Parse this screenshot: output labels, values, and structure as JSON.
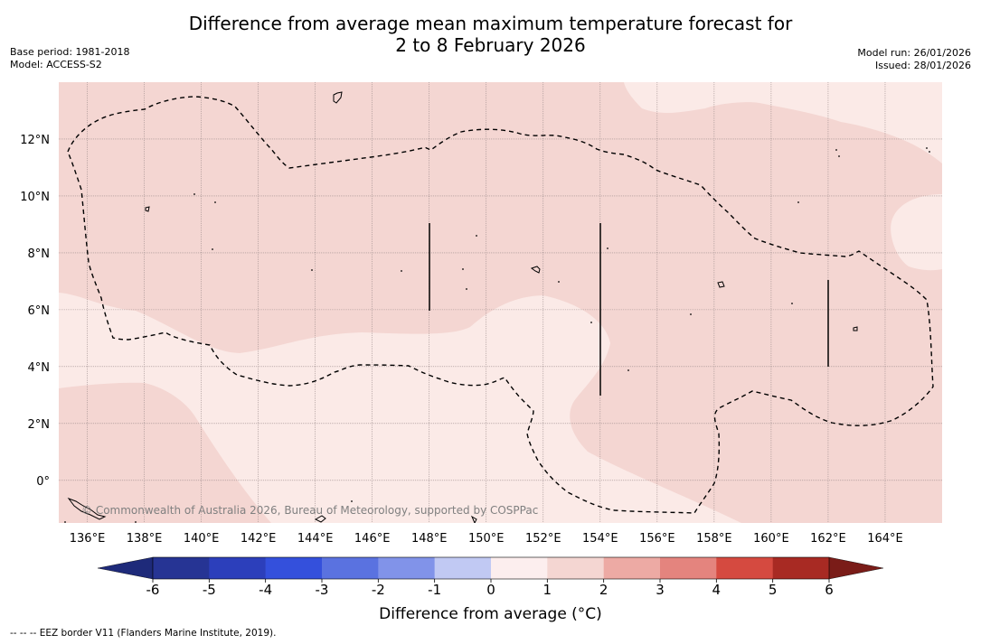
{
  "title": {
    "line1": "Difference from average mean maximum temperature forecast for",
    "line2": "2 to 8 February 2026"
  },
  "meta_left": {
    "base_period": "Base period: 1981-2018",
    "model": "Model: ACCESS-S2"
  },
  "meta_right": {
    "model_run": "Model run: 26/01/2026",
    "issued": "Issued: 28/01/2026"
  },
  "attribution": "© Commonwealth of Australia 2026, Bureau of Meteorology, supported by COSPPac",
  "map": {
    "lon_range": [
      135,
      166
    ],
    "lat_range": [
      -1.5,
      14
    ],
    "lon_ticks": [
      136,
      138,
      140,
      142,
      144,
      146,
      148,
      150,
      152,
      154,
      156,
      158,
      160,
      162,
      164
    ],
    "lon_tick_labels": [
      "136°E",
      "138°E",
      "140°E",
      "142°E",
      "144°E",
      "146°E",
      "148°E",
      "150°E",
      "152°E",
      "154°E",
      "156°E",
      "158°E",
      "160°E",
      "162°E",
      "164°E"
    ],
    "lat_ticks": [
      0,
      2,
      4,
      6,
      8,
      10,
      12
    ],
    "lat_tick_labels": [
      "0°",
      "2°N",
      "4°N",
      "6°N",
      "8°N",
      "10°N",
      "12°N"
    ],
    "colors": {
      "band_0_1": "#fbeae7",
      "band_1_2": "#f4d6d2",
      "gridline": "#9a8a8a",
      "eez": "#000000"
    },
    "anomaly_regions": [
      {
        "band": "1 to 2",
        "label": "warm region north and east"
      },
      {
        "band": "0 to 1",
        "label": "near-average equatorial band"
      },
      {
        "band": "1 to 2",
        "label": "warm region southwest"
      },
      {
        "band": "0 to 1",
        "label": "near-average northeast corner"
      }
    ]
  },
  "colorbar": {
    "label": "Difference from average (°C)",
    "tick_labels": [
      "-6",
      "-5",
      "-4",
      "-3",
      "-2",
      "-1",
      "0",
      "1",
      "2",
      "3",
      "4",
      "5",
      "6"
    ],
    "colors": [
      "#263494",
      "#2c3fbb",
      "#3450dc",
      "#5a72e0",
      "#8193e9",
      "#c1c9f3",
      "#eceefa",
      "#fceeee",
      "#f4d6d2",
      "#edaaa4",
      "#e4847e",
      "#d54a40",
      "#a82a23"
    ],
    "extend_low_color": "#1e2a7a",
    "extend_high_color": "#7a1c18"
  },
  "footnote": "--  --  -- EEZ border V11 (Flanders Marine Institute, 2019)."
}
